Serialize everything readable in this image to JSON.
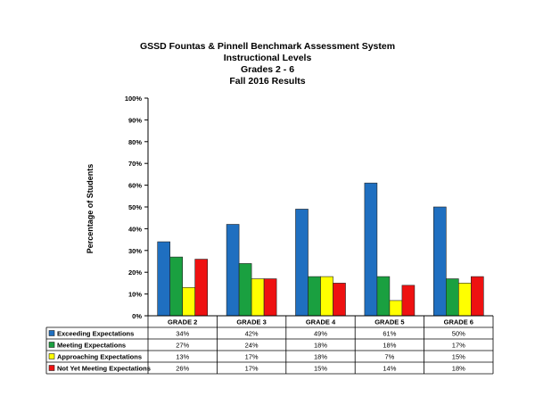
{
  "chart_data": {
    "type": "bar",
    "title": "GSSD Fountas & Pinnell Benchmark Assessment System",
    "subtitles": [
      "Instructional Levels",
      "Grades 2 - 6",
      "Fall 2016 Results"
    ],
    "xlabel": "",
    "ylabel": "Percentage of Students",
    "ylim": [
      0,
      100
    ],
    "ytick_labels": [
      "0%",
      "10%",
      "20%",
      "30%",
      "40%",
      "50%",
      "60%",
      "70%",
      "80%",
      "90%",
      "100%"
    ],
    "grid": false,
    "legend": "data-table-below",
    "categories": [
      "GRADE 2",
      "GRADE 3",
      "GRADE 4",
      "GRADE 5",
      "GRADE 6"
    ],
    "series": [
      {
        "name": "Exceeding Expectations",
        "color": "#1f6fc0",
        "values": [
          34,
          42,
          49,
          61,
          50
        ],
        "labels": [
          "34%",
          "42%",
          "49%",
          "61%",
          "50%"
        ]
      },
      {
        "name": "Meeting Expectations",
        "color": "#1aa040",
        "values": [
          27,
          24,
          18,
          18,
          17
        ],
        "labels": [
          "27%",
          "24%",
          "18%",
          "18%",
          "17%"
        ]
      },
      {
        "name": "Approaching Expectations",
        "color": "#ffff00",
        "values": [
          13,
          17,
          18,
          7,
          15
        ],
        "labels": [
          "13%",
          "17%",
          "18%",
          "7%",
          "15%"
        ]
      },
      {
        "name": "Not Yet Meeting Expectations",
        "color": "#ee1111",
        "values": [
          26,
          17,
          15,
          14,
          18
        ],
        "labels": [
          "26%",
          "17%",
          "15%",
          "14%",
          "18%"
        ]
      }
    ]
  }
}
